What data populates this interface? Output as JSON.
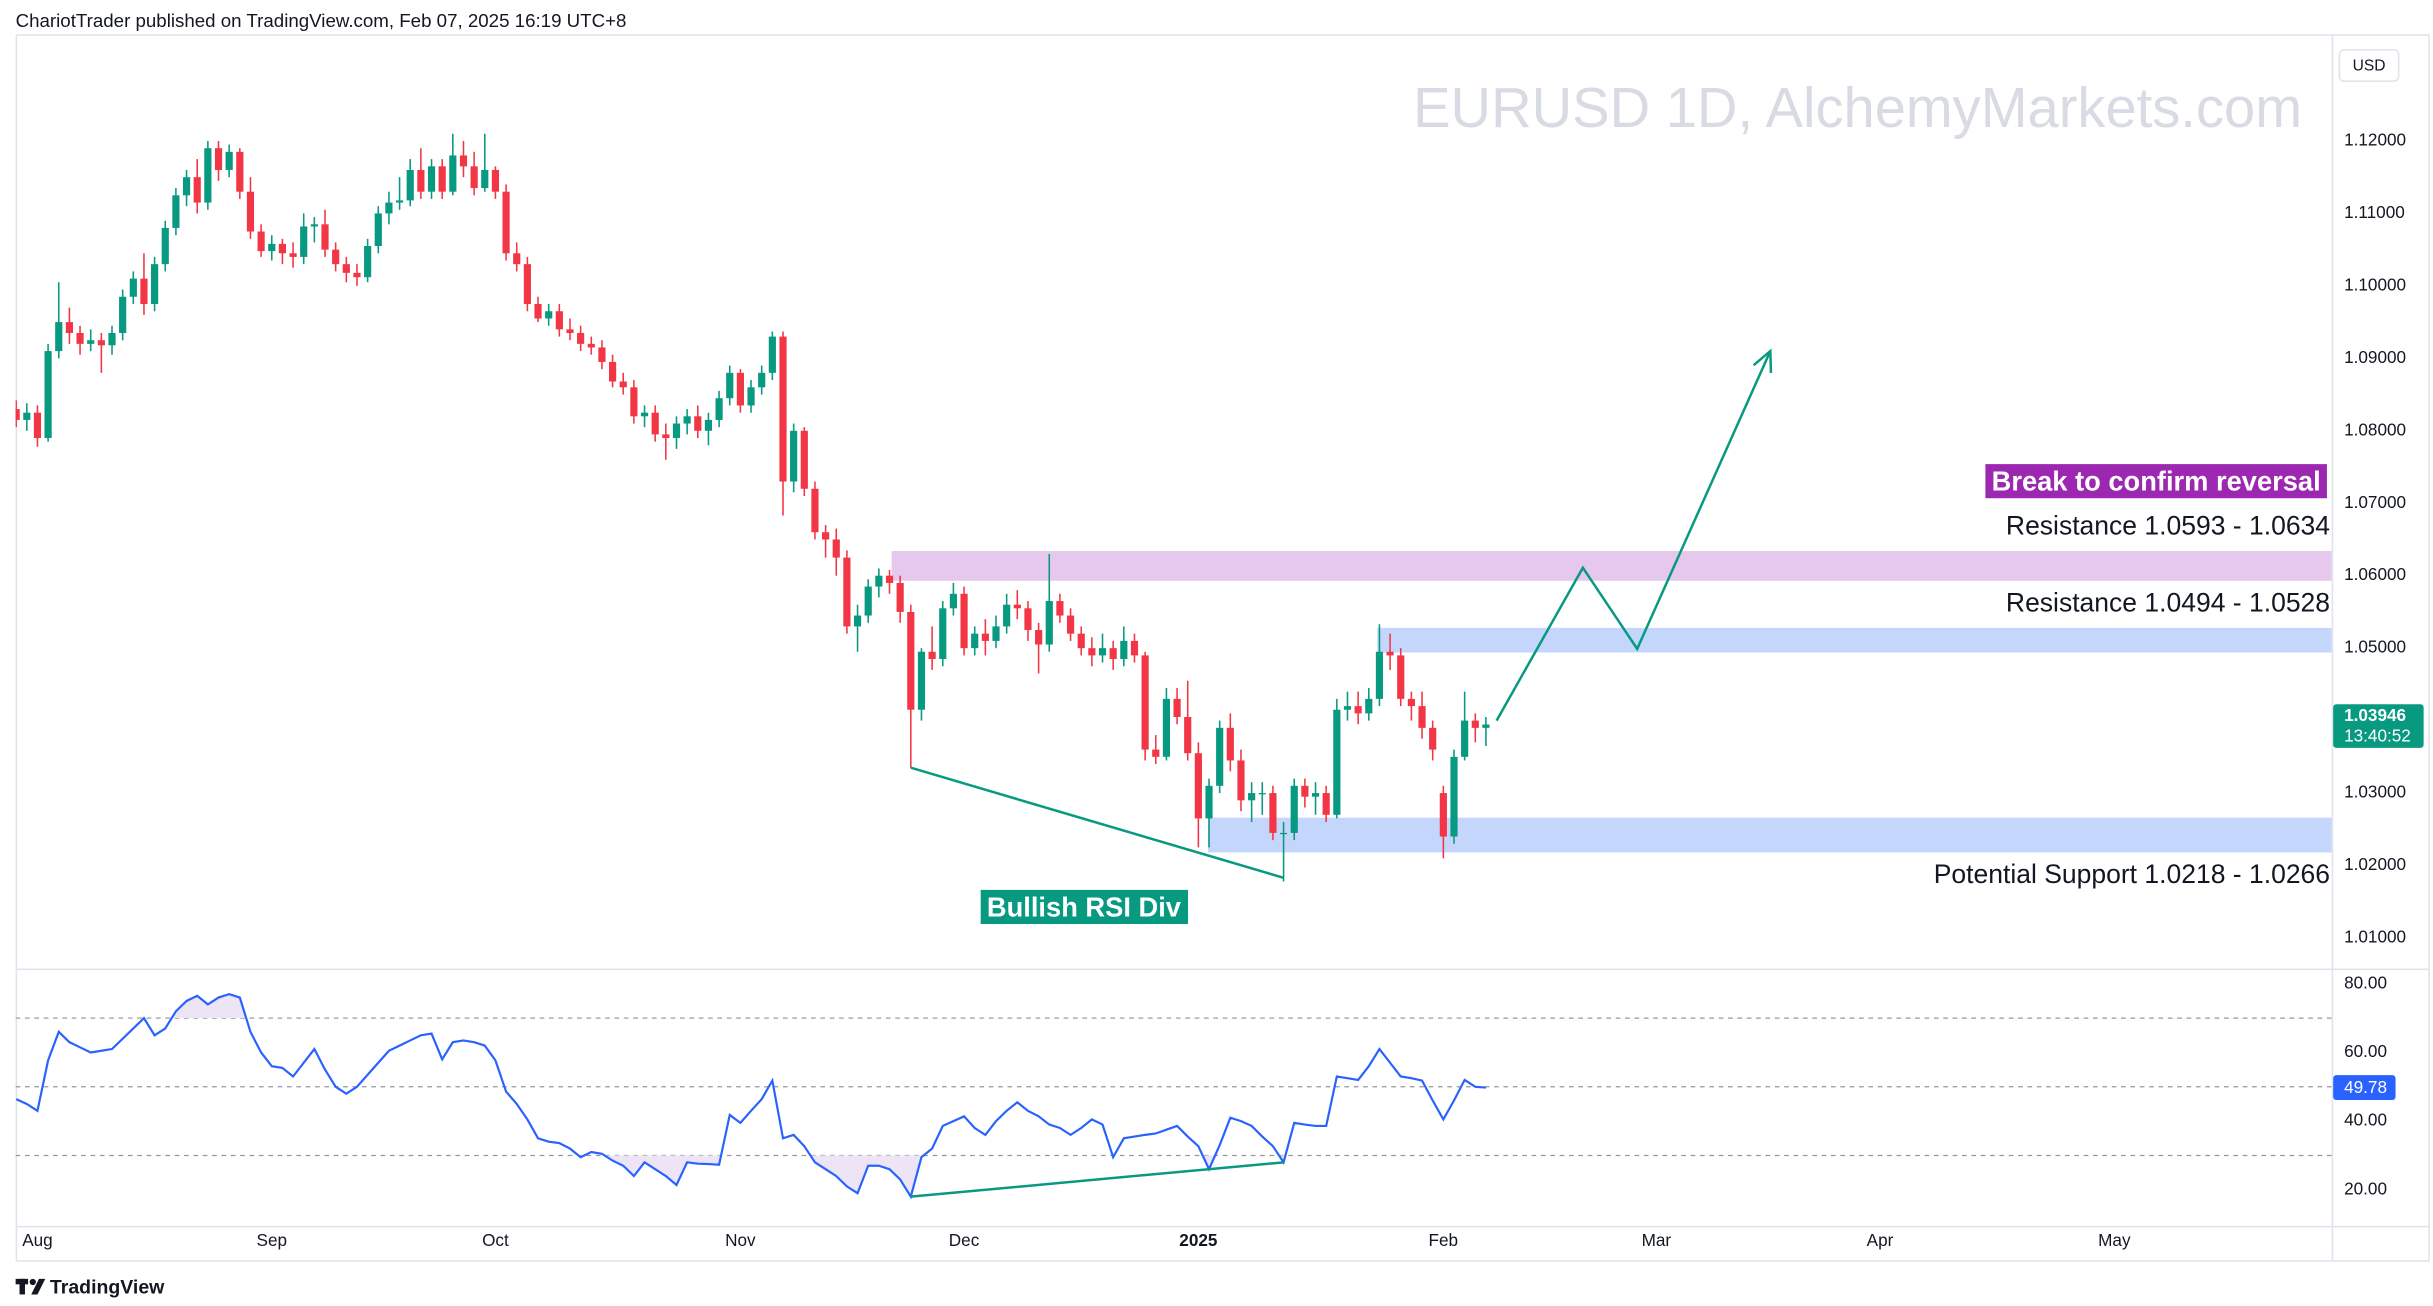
{
  "header": "ChariotTrader published on TradingView.com, Feb 07, 2025 16:19 UTC+8",
  "footer": "TradingView",
  "chart_data": [
    {
      "type": "candlestick",
      "title": "EURUSD 1D, AlchemyMarkets.com",
      "currency": "USD",
      "countdown": "13:40:52",
      "up_color": "#089981",
      "down_color": "#f23645",
      "grid": false,
      "xlim": [
        -0.05,
        217.4
      ],
      "ylim": [
        1.006,
        1.133
      ],
      "yticks": [
        {
          "value": 1.01,
          "label": "1.01000"
        },
        {
          "value": 1.02,
          "label": "1.02000"
        },
        {
          "value": 1.03,
          "label": "1.03000"
        },
        {
          "value": 1.04,
          "label": "1.04000"
        },
        {
          "value": 1.05,
          "label": "1.05000"
        },
        {
          "value": 1.06,
          "label": "1.06000"
        },
        {
          "value": 1.07,
          "label": "1.07000"
        },
        {
          "value": 1.08,
          "label": "1.08000"
        },
        {
          "value": 1.09,
          "label": "1.09000"
        },
        {
          "value": 1.1,
          "label": "1.10000"
        },
        {
          "value": 1.11,
          "label": "1.11000"
        },
        {
          "value": 1.12,
          "label": "1.12000"
        }
      ],
      "candles": [
        [
          1.083,
          1.0842,
          1.0805,
          1.0815
        ],
        [
          1.0815,
          1.0838,
          1.08,
          1.0825
        ],
        [
          1.0825,
          1.0835,
          1.0778,
          1.079
        ],
        [
          1.079,
          1.092,
          1.0785,
          1.091
        ],
        [
          1.091,
          1.1005,
          1.09,
          1.095
        ],
        [
          1.095,
          1.097,
          1.092,
          1.0935
        ],
        [
          1.0935,
          1.0945,
          1.0905,
          1.092
        ],
        [
          1.092,
          1.094,
          1.091,
          1.0925
        ],
        [
          1.0925,
          1.0935,
          1.088,
          1.0918
        ],
        [
          1.0918,
          1.0945,
          1.0905,
          1.0935
        ],
        [
          1.0935,
          1.0995,
          1.0925,
          1.0985
        ],
        [
          1.0985,
          1.102,
          1.0975,
          1.101
        ],
        [
          1.101,
          1.1045,
          1.096,
          1.0975
        ],
        [
          1.0975,
          1.104,
          1.0965,
          1.103
        ],
        [
          1.103,
          1.109,
          1.102,
          1.108
        ],
        [
          1.108,
          1.1135,
          1.107,
          1.1125
        ],
        [
          1.1125,
          1.116,
          1.111,
          1.115
        ],
        [
          1.115,
          1.1175,
          1.11,
          1.1115
        ],
        [
          1.1115,
          1.12,
          1.1105,
          1.119
        ],
        [
          1.119,
          1.12,
          1.1145,
          1.116
        ],
        [
          1.116,
          1.1195,
          1.115,
          1.1185
        ],
        [
          1.1185,
          1.119,
          1.112,
          1.113
        ],
        [
          1.113,
          1.115,
          1.1065,
          1.1075
        ],
        [
          1.1075,
          1.1085,
          1.104,
          1.1048
        ],
        [
          1.1048,
          1.107,
          1.1035,
          1.1058
        ],
        [
          1.1058,
          1.1065,
          1.103,
          1.1045
        ],
        [
          1.1045,
          1.106,
          1.1025,
          1.104
        ],
        [
          1.104,
          1.11,
          1.103,
          1.1082
        ],
        [
          1.1082,
          1.1095,
          1.106,
          1.1085
        ],
        [
          1.1085,
          1.1105,
          1.104,
          1.105
        ],
        [
          1.105,
          1.106,
          1.102,
          1.103
        ],
        [
          1.103,
          1.104,
          1.1005,
          1.1018
        ],
        [
          1.1018,
          1.103,
          1.1,
          1.1012
        ],
        [
          1.1012,
          1.1065,
          1.1005,
          1.1055
        ],
        [
          1.1055,
          1.111,
          1.1045,
          1.11
        ],
        [
          1.11,
          1.113,
          1.1085,
          1.1115
        ],
        [
          1.1115,
          1.115,
          1.1105,
          1.1118
        ],
        [
          1.1118,
          1.1175,
          1.111,
          1.116
        ],
        [
          1.116,
          1.119,
          1.112,
          1.113
        ],
        [
          1.113,
          1.1175,
          1.112,
          1.1165
        ],
        [
          1.1165,
          1.1175,
          1.112,
          1.113
        ],
        [
          1.113,
          1.121,
          1.1125,
          1.118
        ],
        [
          1.118,
          1.12,
          1.115,
          1.1165
        ],
        [
          1.1165,
          1.1185,
          1.1125,
          1.1135
        ],
        [
          1.1135,
          1.121,
          1.113,
          1.116
        ],
        [
          1.116,
          1.1165,
          1.112,
          1.113
        ],
        [
          1.113,
          1.114,
          1.1035,
          1.1045
        ],
        [
          1.1045,
          1.106,
          1.102,
          1.103
        ],
        [
          1.103,
          1.104,
          1.0965,
          1.0975
        ],
        [
          1.0975,
          1.0985,
          1.095,
          1.0955
        ],
        [
          1.0955,
          1.0975,
          1.0945,
          1.0965
        ],
        [
          1.0965,
          1.0975,
          1.093,
          1.094
        ],
        [
          1.094,
          1.0955,
          1.0925,
          1.0935
        ],
        [
          1.0935,
          1.0945,
          1.091,
          1.092
        ],
        [
          1.092,
          1.093,
          1.0905,
          1.0915
        ],
        [
          1.0915,
          1.0925,
          1.0885,
          1.0895
        ],
        [
          1.0895,
          1.0905,
          1.086,
          1.0868
        ],
        [
          1.0868,
          1.088,
          1.085,
          1.086
        ],
        [
          1.086,
          1.087,
          1.081,
          1.082
        ],
        [
          1.082,
          1.0835,
          1.0805,
          1.0825
        ],
        [
          1.0825,
          1.0835,
          1.0785,
          1.0795
        ],
        [
          1.0795,
          1.081,
          1.076,
          1.079
        ],
        [
          1.079,
          1.082,
          1.0775,
          1.081
        ],
        [
          1.081,
          1.083,
          1.0795,
          1.082
        ],
        [
          1.082,
          1.0835,
          1.079,
          1.08
        ],
        [
          1.08,
          1.0825,
          1.078,
          1.0815
        ],
        [
          1.0815,
          1.0855,
          1.0805,
          1.0845
        ],
        [
          1.0845,
          1.089,
          1.0835,
          1.088
        ],
        [
          1.088,
          1.0885,
          1.0825,
          1.0835
        ],
        [
          1.0835,
          1.087,
          1.0825,
          1.086
        ],
        [
          1.086,
          1.089,
          1.085,
          1.088
        ],
        [
          1.088,
          1.0937,
          1.087,
          1.093
        ],
        [
          1.093,
          1.0937,
          1.0683,
          1.073
        ],
        [
          1.073,
          1.081,
          1.0715,
          1.08
        ],
        [
          1.08,
          1.0805,
          1.071,
          1.072
        ],
        [
          1.072,
          1.073,
          1.065,
          1.066
        ],
        [
          1.066,
          1.067,
          1.0625,
          1.065
        ],
        [
          1.065,
          1.0665,
          1.06,
          1.0625
        ],
        [
          1.0625,
          1.0635,
          1.052,
          1.053
        ],
        [
          1.053,
          1.056,
          1.0495,
          1.0545
        ],
        [
          1.0545,
          1.0595,
          1.0535,
          1.0585
        ],
        [
          1.0585,
          1.061,
          1.057,
          1.06
        ],
        [
          1.06,
          1.0608,
          1.0575,
          1.059
        ],
        [
          1.059,
          1.06,
          1.0535,
          1.055
        ],
        [
          1.055,
          1.056,
          1.0335,
          1.0415
        ],
        [
          1.0415,
          1.05,
          1.04,
          1.0495
        ],
        [
          1.0495,
          1.053,
          1.047,
          1.0485
        ],
        [
          1.0485,
          1.0565,
          1.0475,
          1.0555
        ],
        [
          1.0555,
          1.059,
          1.0545,
          1.0575
        ],
        [
          1.0575,
          1.0585,
          1.049,
          1.05
        ],
        [
          1.05,
          1.053,
          1.049,
          1.052
        ],
        [
          1.052,
          1.054,
          1.049,
          1.051
        ],
        [
          1.051,
          1.0545,
          1.05,
          1.053
        ],
        [
          1.053,
          1.0575,
          1.052,
          1.056
        ],
        [
          1.056,
          1.058,
          1.054,
          1.0555
        ],
        [
          1.0555,
          1.0565,
          1.051,
          1.0525
        ],
        [
          1.0525,
          1.0535,
          1.0465,
          1.0505
        ],
        [
          1.0505,
          1.063,
          1.0495,
          1.0565
        ],
        [
          1.0565,
          1.0575,
          1.0535,
          1.0545
        ],
        [
          1.0545,
          1.0555,
          1.051,
          1.052
        ],
        [
          1.052,
          1.053,
          1.049,
          1.05
        ],
        [
          1.05,
          1.0515,
          1.0475,
          1.049
        ],
        [
          1.049,
          1.052,
          1.048,
          1.05
        ],
        [
          1.05,
          1.051,
          1.047,
          1.0485
        ],
        [
          1.0485,
          1.053,
          1.0475,
          1.051
        ],
        [
          1.051,
          1.052,
          1.048,
          1.049
        ],
        [
          1.049,
          1.0495,
          1.0345,
          1.036
        ],
        [
          1.036,
          1.038,
          1.034,
          1.035
        ],
        [
          1.035,
          1.0445,
          1.0345,
          1.043
        ],
        [
          1.043,
          1.0445,
          1.0395,
          1.0405
        ],
        [
          1.0405,
          1.0455,
          1.0345,
          1.0355
        ],
        [
          1.0355,
          1.037,
          1.0225,
          1.0265
        ],
        [
          1.0265,
          1.032,
          1.0225,
          1.031
        ],
        [
          1.031,
          1.04,
          1.03,
          1.039
        ],
        [
          1.039,
          1.041,
          1.033,
          1.0345
        ],
        [
          1.0345,
          1.036,
          1.0275,
          1.029
        ],
        [
          1.029,
          1.0315,
          1.026,
          1.03
        ],
        [
          1.03,
          1.0315,
          1.027,
          1.03
        ],
        [
          1.03,
          1.031,
          1.0235,
          1.0245
        ],
        [
          1.0245,
          1.026,
          1.0178,
          1.0245
        ],
        [
          1.0245,
          1.032,
          1.0235,
          1.031
        ],
        [
          1.031,
          1.032,
          1.028,
          1.0295
        ],
        [
          1.0295,
          1.0315,
          1.027,
          1.03
        ],
        [
          1.03,
          1.031,
          1.026,
          1.027
        ],
        [
          1.027,
          1.043,
          1.0265,
          1.0415
        ],
        [
          1.0415,
          1.044,
          1.04,
          1.042
        ],
        [
          1.042,
          1.044,
          1.0395,
          1.041
        ],
        [
          1.041,
          1.0445,
          1.04,
          1.043
        ],
        [
          1.043,
          1.0533,
          1.042,
          1.0495
        ],
        [
          1.0495,
          1.052,
          1.047,
          1.049
        ],
        [
          1.049,
          1.05,
          1.042,
          1.043
        ],
        [
          1.043,
          1.044,
          1.04,
          1.042
        ],
        [
          1.042,
          1.044,
          1.0375,
          1.039
        ],
        [
          1.039,
          1.04,
          1.0345,
          1.036
        ],
        [
          1.03,
          1.031,
          1.021,
          1.024
        ],
        [
          1.024,
          1.036,
          1.023,
          1.035
        ],
        [
          1.035,
          1.044,
          1.0345,
          1.04
        ],
        [
          1.04,
          1.041,
          1.037,
          1.039
        ],
        [
          1.039,
          1.0405,
          1.0365,
          1.03946
        ]
      ],
      "zones": [
        {
          "label": "Resistance 1.0593 - 1.0634",
          "low": 1.0593,
          "high": 1.0634,
          "start": 82.2,
          "color": "#e1bee7",
          "label_side": "above"
        },
        {
          "label": "Resistance 1.0494 - 1.0528",
          "low": 1.0494,
          "high": 1.0528,
          "start": 127.8,
          "color": "#bbcffb",
          "label_side": "above"
        },
        {
          "label": "Potential Support 1.0218 - 1.0266",
          "low": 1.0218,
          "high": 1.0266,
          "start": 111.9,
          "color": "#bbcffb",
          "label_side": "below"
        }
      ],
      "annotations": [
        {
          "text": "Break to confirm reversal",
          "color": "#9c27b0"
        },
        {
          "text": "Bullish RSI Div",
          "color": "#089981"
        }
      ],
      "divergence": {
        "x": [
          84,
          119
        ],
        "y": [
          1.0335,
          1.0183
        ],
        "color": "#089981"
      },
      "projection": {
        "x": [
          139,
          147.1,
          152.2,
          164.7
        ],
        "y": [
          1.04,
          1.0611,
          1.0499,
          1.091
        ],
        "color": "#089981"
      }
    },
    {
      "type": "line",
      "grid": false,
      "xlim": [
        -0.05,
        217.4
      ],
      "ylim": [
        9.5,
        84
      ],
      "yticks": [
        {
          "value": 20,
          "label": "20.00"
        },
        {
          "value": 40,
          "label": "40.00"
        },
        {
          "value": 60,
          "label": "60.00"
        },
        {
          "value": 80,
          "label": "80.00"
        }
      ],
      "xticks": [
        {
          "value": 2,
          "label": "Aug"
        },
        {
          "value": 24,
          "label": "Sep"
        },
        {
          "value": 45,
          "label": "Oct"
        },
        {
          "value": 68,
          "label": "Nov"
        },
        {
          "value": 89,
          "label": "Dec"
        },
        {
          "value": 111,
          "label": "2025"
        },
        {
          "value": 134,
          "label": "Feb"
        },
        {
          "value": 154,
          "label": "Mar"
        },
        {
          "value": 175,
          "label": "Apr"
        },
        {
          "value": 197,
          "label": "May"
        }
      ],
      "levels": [
        70,
        50,
        30
      ],
      "fill_color": "#ede4f5",
      "series": [
        {
          "color": "#2962ff",
          "values": [
            46.4,
            45,
            43,
            57.7,
            66,
            63,
            61.5,
            60,
            60.5,
            61,
            64,
            67,
            70,
            65,
            67,
            72,
            75,
            76.5,
            74,
            76,
            77,
            76,
            66,
            60,
            56,
            55.5,
            53,
            57,
            61,
            55,
            50,
            48,
            50,
            53.5,
            57,
            60.5,
            62,
            63.5,
            65,
            65.5,
            58,
            63,
            63.5,
            63,
            62,
            57.7,
            48.6,
            45,
            40.5,
            35,
            34,
            33.6,
            32,
            29.5,
            31,
            30.5,
            28.5,
            27,
            24,
            28,
            26,
            24,
            21.4,
            28,
            27.6,
            27.5,
            27.3,
            41.8,
            39.5,
            43,
            46.4,
            51.8,
            35,
            36,
            32.7,
            28,
            26,
            24,
            21,
            19,
            27,
            27,
            26,
            23,
            18,
            29.5,
            32,
            38.6,
            40,
            41.4,
            38,
            36,
            40,
            43,
            45.5,
            43,
            41.4,
            39,
            38,
            36,
            38,
            40.5,
            39,
            29.5,
            35,
            35.5,
            36,
            36.4,
            37.5,
            38.6,
            35.5,
            32.7,
            26,
            33,
            41,
            40,
            38.6,
            35.5,
            32.7,
            28,
            39.5,
            39,
            38.6,
            38.6,
            53,
            52.5,
            52,
            56,
            61,
            57,
            53,
            52.5,
            51.8,
            46,
            40.5,
            46,
            52,
            50,
            49.78
          ]
        }
      ],
      "divergence": {
        "x": [
          84,
          119
        ],
        "y": [
          18,
          28
        ],
        "color": "#089981"
      }
    }
  ]
}
